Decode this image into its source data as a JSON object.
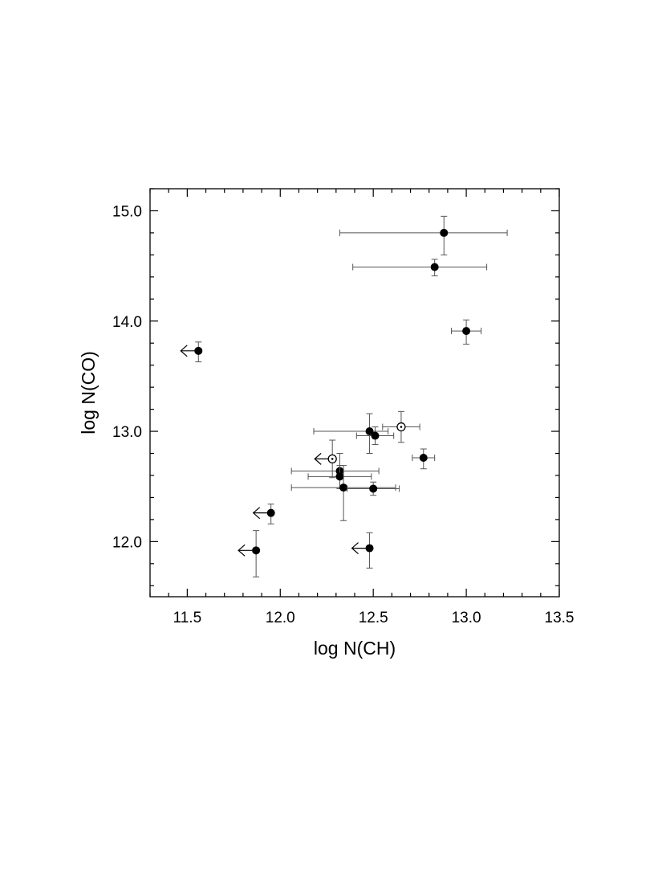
{
  "chart_data": {
    "type": "scatter",
    "title": "",
    "xlabel": "log N(CH)",
    "ylabel": "log N(CO)",
    "xlim": [
      11.3,
      13.5
    ],
    "ylim": [
      11.5,
      15.2
    ],
    "x_ticks": [
      "11.5",
      "12.0",
      "12.5",
      "13.0",
      "13.5"
    ],
    "y_ticks": [
      "12.0",
      "13.0",
      "14.0",
      "15.0"
    ],
    "grid": false,
    "legend": "none",
    "colors": {
      "marker": "#000000",
      "errorbar": "#555555",
      "open_marker_fill": "#ffffff"
    },
    "points": [
      {
        "x": 12.88,
        "y": 14.8,
        "xerr": [
          0.56,
          0.34
        ],
        "yerr": [
          0.2,
          0.15
        ],
        "marker": "filled"
      },
      {
        "x": 12.83,
        "y": 14.49,
        "xerr": [
          0.44,
          0.28
        ],
        "yerr": [
          0.08,
          0.07
        ],
        "marker": "filled"
      },
      {
        "x": 13.0,
        "y": 13.91,
        "xerr": [
          0.08,
          0.08
        ],
        "yerr": [
          0.12,
          0.1
        ],
        "marker": "filled"
      },
      {
        "x": 11.56,
        "y": 13.73,
        "xerr": [
          0.0,
          0.0
        ],
        "yerr": [
          0.1,
          0.08
        ],
        "marker": "filled",
        "upper_limit_x": true
      },
      {
        "x": 12.65,
        "y": 13.04,
        "xerr": [
          0.1,
          0.1
        ],
        "yerr": [
          0.14,
          0.14
        ],
        "marker": "open"
      },
      {
        "x": 12.48,
        "y": 13.0,
        "xerr": [
          0.3,
          0.1
        ],
        "yerr": [
          0.2,
          0.16
        ],
        "marker": "filled"
      },
      {
        "x": 12.51,
        "y": 12.96,
        "xerr": [
          0.1,
          0.1
        ],
        "yerr": [
          0.08,
          0.08
        ],
        "marker": "filled"
      },
      {
        "x": 12.28,
        "y": 12.75,
        "xerr": [
          0.0,
          0.0
        ],
        "yerr": [
          0.17,
          0.17
        ],
        "marker": "open",
        "upper_limit_x": true
      },
      {
        "x": 12.77,
        "y": 12.76,
        "xerr": [
          0.06,
          0.06
        ],
        "yerr": [
          0.1,
          0.08
        ],
        "marker": "filled"
      },
      {
        "x": 12.32,
        "y": 12.64,
        "xerr": [
          0.26,
          0.21
        ],
        "yerr": [
          0.16,
          0.16
        ],
        "marker": "filled"
      },
      {
        "x": 12.32,
        "y": 12.59,
        "xerr": [
          0.17,
          0.17
        ],
        "yerr": [
          0.1,
          0.1
        ],
        "marker": "filled"
      },
      {
        "x": 12.34,
        "y": 12.49,
        "xerr": [
          0.28,
          0.28
        ],
        "yerr": [
          0.3,
          0.2
        ],
        "marker": "filled"
      },
      {
        "x": 12.5,
        "y": 12.48,
        "xerr": [
          0.14,
          0.14
        ],
        "yerr": [
          0.06,
          0.06
        ],
        "marker": "filled"
      },
      {
        "x": 11.95,
        "y": 12.26,
        "xerr": [
          0.0,
          0.0
        ],
        "yerr": [
          0.1,
          0.08
        ],
        "marker": "filled",
        "upper_limit_x": true
      },
      {
        "x": 11.87,
        "y": 11.92,
        "xerr": [
          0.0,
          0.0
        ],
        "yerr": [
          0.24,
          0.18
        ],
        "marker": "filled",
        "upper_limit_x": true
      },
      {
        "x": 12.48,
        "y": 11.94,
        "xerr": [
          0.0,
          0.0
        ],
        "yerr": [
          0.18,
          0.14
        ],
        "marker": "filled",
        "upper_limit_x": true
      }
    ]
  }
}
